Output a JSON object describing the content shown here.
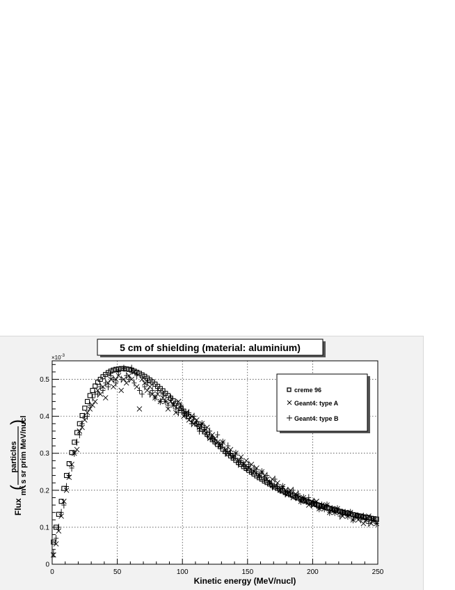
{
  "chart_data": {
    "type": "scatter",
    "title": "5 cm of shielding (material: aluminium)",
    "xlabel": "Kinetic energy (MeV/nucl)",
    "ylabel": {
      "prefix": "Flux",
      "numerator": "particles",
      "denominator_pre": "m",
      "denominator_sup": "2",
      "denominator_post": " s sr prim MeV/nucl"
    },
    "y_multiplier": "×10",
    "y_multiplier_exp": "-3",
    "xlim": [
      0,
      250
    ],
    "ylim": [
      0,
      0.55
    ],
    "xticks": [
      0,
      50,
      100,
      150,
      200,
      250
    ],
    "yticks": [
      0,
      0.1,
      0.2,
      0.3,
      0.4,
      0.5
    ],
    "xtick_labels": [
      "0",
      "50",
      "100",
      "150",
      "200",
      "250"
    ],
    "ytick_labels": [
      "0",
      "0.1",
      "0.2",
      "0.3",
      "0.4",
      "0.5"
    ],
    "grid": true,
    "legend_position": "top-right",
    "series": [
      {
        "name": "creme 96",
        "marker": "open-square",
        "x": [
          1,
          3,
          5,
          7,
          9,
          11,
          13,
          15,
          17,
          19,
          21,
          23,
          25,
          27,
          29,
          31,
          33,
          35,
          37,
          39,
          41,
          43,
          45,
          47,
          49,
          51,
          53,
          55,
          57,
          59,
          61,
          63,
          65,
          67,
          69,
          71,
          73,
          75,
          77,
          79,
          81,
          83,
          85,
          87,
          89,
          91,
          93,
          95,
          97,
          99,
          101,
          103,
          105,
          107,
          109,
          111,
          113,
          115,
          117,
          119,
          121,
          123,
          125,
          127,
          129,
          131,
          133,
          135,
          137,
          139,
          141,
          143,
          145,
          147,
          149,
          151,
          153,
          155,
          157,
          159,
          161,
          163,
          165,
          167,
          169,
          171,
          173,
          175,
          177,
          179,
          181,
          183,
          185,
          187,
          189,
          191,
          193,
          195,
          197,
          199,
          201,
          203,
          205,
          207,
          209,
          211,
          213,
          215,
          217,
          219,
          221,
          223,
          225,
          227,
          229,
          231,
          233,
          235,
          237,
          239,
          241,
          243,
          245,
          247,
          249
        ],
        "y": [
          0.06,
          0.1,
          0.135,
          0.17,
          0.205,
          0.24,
          0.272,
          0.302,
          0.33,
          0.356,
          0.38,
          0.402,
          0.422,
          0.44,
          0.456,
          0.47,
          0.482,
          0.492,
          0.5,
          0.507,
          0.513,
          0.518,
          0.522,
          0.525,
          0.527,
          0.528,
          0.529,
          0.529,
          0.528,
          0.527,
          0.525,
          0.522,
          0.519,
          0.516,
          0.512,
          0.508,
          0.503,
          0.498,
          0.493,
          0.487,
          0.481,
          0.475,
          0.469,
          0.462,
          0.456,
          0.449,
          0.442,
          0.435,
          0.428,
          0.421,
          0.414,
          0.407,
          0.4,
          0.393,
          0.386,
          0.379,
          0.372,
          0.365,
          0.358,
          0.351,
          0.344,
          0.337,
          0.331,
          0.324,
          0.318,
          0.311,
          0.305,
          0.299,
          0.293,
          0.287,
          0.281,
          0.275,
          0.27,
          0.264,
          0.259,
          0.254,
          0.249,
          0.244,
          0.239,
          0.234,
          0.23,
          0.225,
          0.221,
          0.217,
          0.213,
          0.209,
          0.205,
          0.201,
          0.198,
          0.194,
          0.191,
          0.188,
          0.185,
          0.182,
          0.179,
          0.176,
          0.173,
          0.171,
          0.168,
          0.166,
          0.163,
          0.161,
          0.159,
          0.157,
          0.155,
          0.153,
          0.151,
          0.149,
          0.147,
          0.145,
          0.143,
          0.141,
          0.139,
          0.138,
          0.136,
          0.134,
          0.133,
          0.131,
          0.13,
          0.128,
          0.127,
          0.126,
          0.124,
          0.123,
          0.122
        ]
      },
      {
        "name": "Geant4: type A",
        "marker": "x-cross",
        "x": [
          1,
          3,
          5,
          7,
          9,
          11,
          13,
          15,
          17,
          19,
          21,
          23,
          25,
          27,
          29,
          31,
          33,
          35,
          37,
          39,
          41,
          43,
          45,
          47,
          49,
          51,
          53,
          55,
          57,
          59,
          61,
          63,
          65,
          67,
          69,
          71,
          73,
          75,
          77,
          79,
          81,
          83,
          85,
          87,
          89,
          91,
          93,
          95,
          97,
          99,
          101,
          103,
          105,
          107,
          109,
          111,
          113,
          115,
          117,
          119,
          121,
          123,
          125,
          127,
          129,
          131,
          133,
          135,
          137,
          139,
          141,
          143,
          145,
          147,
          149,
          151,
          153,
          155,
          157,
          159,
          161,
          163,
          165,
          167,
          169,
          171,
          173,
          175,
          177,
          179,
          181,
          183,
          185,
          187,
          189,
          191,
          193,
          195,
          197,
          199,
          201,
          203,
          205,
          207,
          209,
          211,
          213,
          215,
          217,
          219,
          221,
          223,
          225,
          227,
          229,
          231,
          233,
          235,
          237,
          239,
          241,
          243,
          245,
          247,
          249
        ],
        "y": [
          0.025,
          0.055,
          0.09,
          0.13,
          0.17,
          0.2,
          0.235,
          0.27,
          0.3,
          0.31,
          0.36,
          0.37,
          0.39,
          0.41,
          0.42,
          0.43,
          0.44,
          0.47,
          0.46,
          0.48,
          0.45,
          0.49,
          0.5,
          0.48,
          0.5,
          0.51,
          0.47,
          0.5,
          0.49,
          0.51,
          0.5,
          0.52,
          0.48,
          0.42,
          0.5,
          0.49,
          0.47,
          0.48,
          0.46,
          0.45,
          0.46,
          0.44,
          0.45,
          0.44,
          0.42,
          0.44,
          0.43,
          0.41,
          0.44,
          0.42,
          0.4,
          0.41,
          0.39,
          0.4,
          0.38,
          0.39,
          0.37,
          0.38,
          0.36,
          0.37,
          0.34,
          0.35,
          0.34,
          0.33,
          0.32,
          0.33,
          0.31,
          0.3,
          0.31,
          0.29,
          0.3,
          0.28,
          0.29,
          0.27,
          0.28,
          0.26,
          0.27,
          0.25,
          0.26,
          0.24,
          0.25,
          0.24,
          0.23,
          0.22,
          0.23,
          0.21,
          0.22,
          0.2,
          0.21,
          0.2,
          0.19,
          0.2,
          0.18,
          0.19,
          0.18,
          0.17,
          0.18,
          0.17,
          0.16,
          0.17,
          0.16,
          0.17,
          0.15,
          0.16,
          0.15,
          0.16,
          0.14,
          0.15,
          0.14,
          0.15,
          0.14,
          0.13,
          0.14,
          0.13,
          0.14,
          0.12,
          0.13,
          0.12,
          0.13,
          0.11,
          0.12,
          0.13,
          0.11,
          0.12,
          0.11
        ]
      },
      {
        "name": "Geant4: type B",
        "marker": "plus",
        "x": [
          1,
          3,
          5,
          7,
          9,
          11,
          13,
          15,
          17,
          19,
          21,
          23,
          25,
          27,
          29,
          31,
          33,
          35,
          37,
          39,
          41,
          43,
          45,
          47,
          49,
          51,
          53,
          55,
          57,
          59,
          61,
          63,
          65,
          67,
          69,
          71,
          73,
          75,
          77,
          79,
          81,
          83,
          85,
          87,
          89,
          91,
          93,
          95,
          97,
          99,
          101,
          103,
          105,
          107,
          109,
          111,
          113,
          115,
          117,
          119,
          121,
          123,
          125,
          127,
          129,
          131,
          133,
          135,
          137,
          139,
          141,
          143,
          145,
          147,
          149,
          151,
          153,
          155,
          157,
          159,
          161,
          163,
          165,
          167,
          169,
          171,
          173,
          175,
          177,
          179,
          181,
          183,
          185,
          187,
          189,
          191,
          193,
          195,
          197,
          199,
          201,
          203,
          205,
          207,
          209,
          211,
          213,
          215,
          217,
          219,
          221,
          223,
          225,
          227,
          229,
          231,
          233,
          235,
          237,
          239,
          241,
          243,
          245,
          247,
          249
        ],
        "y": [
          0.03,
          0.07,
          0.1,
          0.14,
          0.16,
          0.21,
          0.24,
          0.26,
          0.3,
          0.33,
          0.35,
          0.38,
          0.4,
          0.4,
          0.43,
          0.45,
          0.46,
          0.46,
          0.48,
          0.47,
          0.49,
          0.48,
          0.51,
          0.5,
          0.49,
          0.52,
          0.5,
          0.53,
          0.51,
          0.5,
          0.53,
          0.49,
          0.51,
          0.47,
          0.46,
          0.48,
          0.49,
          0.46,
          0.47,
          0.45,
          0.47,
          0.44,
          0.46,
          0.44,
          0.43,
          0.45,
          0.43,
          0.42,
          0.41,
          0.43,
          0.41,
          0.4,
          0.41,
          0.38,
          0.4,
          0.38,
          0.36,
          0.38,
          0.37,
          0.35,
          0.36,
          0.34,
          0.33,
          0.35,
          0.32,
          0.33,
          0.3,
          0.32,
          0.3,
          0.29,
          0.3,
          0.27,
          0.28,
          0.27,
          0.26,
          0.27,
          0.25,
          0.26,
          0.25,
          0.24,
          0.25,
          0.23,
          0.24,
          0.22,
          0.21,
          0.23,
          0.21,
          0.2,
          0.21,
          0.19,
          0.2,
          0.19,
          0.2,
          0.18,
          0.19,
          0.17,
          0.18,
          0.17,
          0.18,
          0.16,
          0.17,
          0.16,
          0.15,
          0.16,
          0.15,
          0.16,
          0.14,
          0.15,
          0.14,
          0.15,
          0.13,
          0.14,
          0.14,
          0.13,
          0.14,
          0.12,
          0.13,
          0.13,
          0.12,
          0.13,
          0.12,
          0.11,
          0.12,
          0.12,
          0.11
        ]
      }
    ]
  }
}
